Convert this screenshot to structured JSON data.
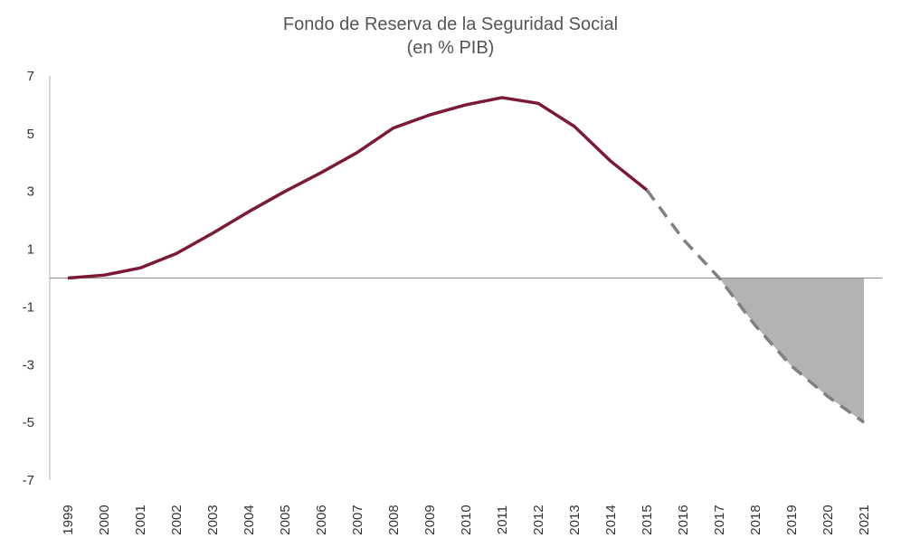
{
  "chart_data": {
    "type": "line",
    "title": "Fondo de Reserva de la Seguridad Social",
    "subtitle": "(en % PIB)",
    "xlabel": "",
    "ylabel": "",
    "categories": [
      "1999",
      "2000",
      "2001",
      "2002",
      "2003",
      "2004",
      "2005",
      "2006",
      "2007",
      "2008",
      "2009",
      "2010",
      "2011",
      "2012",
      "2013",
      "2014",
      "2015",
      "2016",
      "2017",
      "2018",
      "2019",
      "2020",
      "2021"
    ],
    "ylim": [
      -7,
      7
    ],
    "yticks": [
      7,
      5,
      3,
      1,
      -1,
      -3,
      -5,
      -7
    ],
    "grid": false,
    "legend": "none",
    "series": [
      {
        "style": "solid",
        "color": "#7b1a35",
        "x": [
          "1999",
          "2000",
          "2001",
          "2002",
          "2003",
          "2004",
          "2005",
          "2006",
          "2007",
          "2008",
          "2009",
          "2010",
          "2011",
          "2012",
          "2013",
          "2014",
          "2015"
        ],
        "values": [
          0.0,
          0.1,
          0.35,
          0.85,
          1.55,
          2.3,
          3.0,
          3.65,
          4.35,
          5.2,
          5.65,
          6.0,
          6.25,
          6.05,
          5.25,
          4.05,
          3.05
        ]
      },
      {
        "style": "dashed",
        "color": "#808080",
        "x": [
          "2015",
          "2016",
          "2017",
          "2018",
          "2019",
          "2020",
          "2021"
        ],
        "values": [
          3.05,
          1.35,
          0.0,
          -1.65,
          -3.05,
          -4.1,
          -5.0
        ]
      }
    ],
    "shaded_area": {
      "color": "#b3b3b3",
      "x": [
        "2017",
        "2018",
        "2019",
        "2020",
        "2021"
      ],
      "values": [
        0.0,
        -1.65,
        -3.05,
        -4.1,
        -5.0
      ]
    }
  }
}
